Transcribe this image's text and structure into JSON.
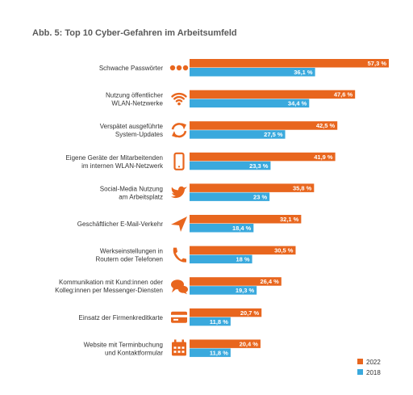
{
  "chart_data": {
    "type": "bar",
    "orientation": "horizontal",
    "title": "Abb. 5: Top 10 Cyber-Gefahren im Arbeitsumfeld",
    "categories": [
      [
        "Schwache Passwörter"
      ],
      [
        "Nutzung öffentlicher",
        "WLAN-Netzwerke"
      ],
      [
        "Verspätet ausgeführte",
        "System-Updates"
      ],
      [
        "Eigene Geräte der Mitarbeitenden",
        "im internen WLAN-Netzwerk"
      ],
      [
        "Social-Media Nutzung",
        "am Arbeitsplatz"
      ],
      [
        "Geschäftlicher E-Mail-Verkehr"
      ],
      [
        "Werkseinstellungen in",
        "Routern oder Telefonen"
      ],
      [
        "Kommunikation mit Kund:innen oder",
        "Kolleg:innen per Messenger-Diensten"
      ],
      [
        "Einsatz der Firmenkreditkarte"
      ],
      [
        "Website mit Terminbuchung",
        "und Kontaktformular"
      ]
    ],
    "icons": [
      "dots-icon",
      "wifi-icon",
      "refresh-icon",
      "smartphone-icon",
      "twitter-bird-icon",
      "paper-plane-icon",
      "phone-icon",
      "chat-bubbles-icon",
      "credit-card-icon",
      "calendar-icon"
    ],
    "series": [
      {
        "name": "2022",
        "color": "#e8661e",
        "values": [
          57.3,
          47.6,
          42.5,
          41.9,
          35.8,
          32.1,
          30.5,
          26.4,
          20.7,
          20.4
        ],
        "labels": [
          "57,3 %",
          "47,6 %",
          "42,5 %",
          "41,9 %",
          "35,8 %",
          "32,1 %",
          "30,5 %",
          "26,4 %",
          "20,7 %",
          "20,4 %"
        ]
      },
      {
        "name": "2018",
        "color": "#3aa9dd",
        "values": [
          36.1,
          34.4,
          27.5,
          23.3,
          23,
          18.4,
          18,
          19.3,
          11.8,
          11.8
        ],
        "labels": [
          "36,1 %",
          "34,4 %",
          "27,5 %",
          "23,3 %",
          "23 %",
          "18,4 %",
          "18 %",
          "19,3 %",
          "11,8 %",
          "11,8 %"
        ]
      }
    ],
    "xlim": [
      0,
      57.3
    ],
    "grid": false,
    "legend_position": "bottom-right"
  },
  "colors": {
    "icon": "#e8661e"
  }
}
